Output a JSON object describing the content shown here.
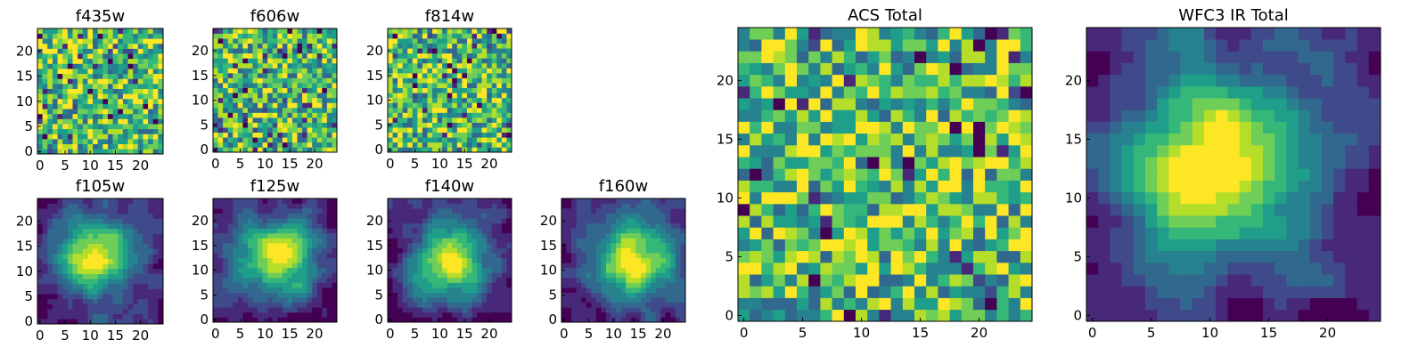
{
  "figure": {
    "grid_size": 25,
    "colormap": [
      "#440154",
      "#482878",
      "#3e4a89",
      "#31688e",
      "#26828e",
      "#1f9e89",
      "#35b779",
      "#6ece58",
      "#b5de2b",
      "#fde725"
    ]
  },
  "chart_data": [
    {
      "type": "heatmap",
      "id": "f435w",
      "title": "f435w",
      "xlabel": "",
      "ylabel": "",
      "xlim": [
        0,
        25
      ],
      "ylim": [
        0,
        25
      ],
      "xticks": [
        0,
        5,
        10,
        15,
        20
      ],
      "yticks": [
        0,
        5,
        10,
        15,
        20
      ],
      "structure": "noise",
      "seed": 11
    },
    {
      "type": "heatmap",
      "id": "f606w",
      "title": "f606w",
      "xlabel": "",
      "ylabel": "",
      "xlim": [
        0,
        25
      ],
      "ylim": [
        0,
        25
      ],
      "xticks": [
        0,
        5,
        10,
        15,
        20
      ],
      "yticks": [
        0,
        5,
        10,
        15,
        20
      ],
      "structure": "noise",
      "seed": 23
    },
    {
      "type": "heatmap",
      "id": "f814w",
      "title": "f814w",
      "xlabel": "",
      "ylabel": "",
      "xlim": [
        0,
        25
      ],
      "ylim": [
        0,
        25
      ],
      "xticks": [
        0,
        5,
        10,
        15,
        20
      ],
      "yticks": [
        0,
        5,
        10,
        15,
        20
      ],
      "structure": "noise",
      "seed": 37
    },
    {
      "type": "heatmap",
      "id": "f105w",
      "title": "f105w",
      "xlabel": "",
      "ylabel": "",
      "xlim": [
        0,
        25
      ],
      "ylim": [
        0,
        25
      ],
      "xticks": [
        0,
        5,
        10,
        15,
        20
      ],
      "yticks": [
        0,
        5,
        10,
        15,
        20
      ],
      "structure": "smooth",
      "seed": 41
    },
    {
      "type": "heatmap",
      "id": "f125w",
      "title": "f125w",
      "xlabel": "",
      "ylabel": "",
      "xlim": [
        0,
        25
      ],
      "ylim": [
        0,
        25
      ],
      "xticks": [
        0,
        5,
        10,
        15,
        20
      ],
      "yticks": [
        0,
        5,
        10,
        15,
        20
      ],
      "structure": "smooth",
      "seed": 53
    },
    {
      "type": "heatmap",
      "id": "f140w",
      "title": "f140w",
      "xlabel": "",
      "ylabel": "",
      "xlim": [
        0,
        25
      ],
      "ylim": [
        0,
        25
      ],
      "xticks": [
        0,
        5,
        10,
        15,
        20
      ],
      "yticks": [
        0,
        5,
        10,
        15,
        20
      ],
      "structure": "smooth",
      "seed": 67
    },
    {
      "type": "heatmap",
      "id": "f160w",
      "title": "f160w",
      "xlabel": "",
      "ylabel": "",
      "xlim": [
        0,
        25
      ],
      "ylim": [
        0,
        25
      ],
      "xticks": [
        0,
        5,
        10,
        15,
        20
      ],
      "yticks": [
        0,
        5,
        10,
        15,
        20
      ],
      "structure": "smooth",
      "seed": 79
    },
    {
      "type": "heatmap",
      "id": "acs-total",
      "title": "ACS Total",
      "xlabel": "",
      "ylabel": "",
      "xlim": [
        0,
        25
      ],
      "ylim": [
        0,
        25
      ],
      "xticks": [
        0,
        5,
        10,
        15,
        20
      ],
      "yticks": [
        0,
        5,
        10,
        15,
        20
      ],
      "structure": "noise",
      "seed": 97
    },
    {
      "type": "heatmap",
      "id": "wfc3-ir-total",
      "title": "WFC3 IR Total",
      "xlabel": "",
      "ylabel": "",
      "xlim": [
        0,
        25
      ],
      "ylim": [
        0,
        25
      ],
      "xticks": [
        0,
        5,
        10,
        15,
        20
      ],
      "yticks": [
        0,
        5,
        10,
        15,
        20
      ],
      "structure": "smooth",
      "seed": 101
    }
  ]
}
